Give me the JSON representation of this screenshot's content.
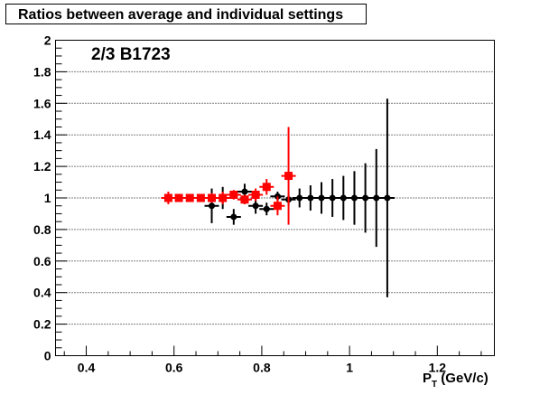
{
  "chart_data": {
    "type": "scatter",
    "title": "Ratios between average and individual settings",
    "annotation": "2/3 B1723",
    "xlabel": {
      "main": "P",
      "subscript": "T",
      "suffix": " (GeV/c)"
    },
    "ylabel": "",
    "xlim": [
      0.33,
      1.33
    ],
    "ylim": [
      0,
      2
    ],
    "x_tick_labels": [
      "0.4",
      "0.6",
      "0.8",
      "1",
      "1.2"
    ],
    "y_tick_labels": [
      "0",
      "0.2",
      "0.4",
      "0.6",
      "0.8",
      "1",
      "1.2",
      "1.4",
      "1.6",
      "1.8",
      "2"
    ],
    "grid": {
      "horizontal": true,
      "vertical": false
    },
    "legend": "none",
    "series": [
      {
        "color": "#ff0000",
        "marker": "square",
        "points": [
          {
            "x": 0.587,
            "y": 1.0,
            "err": 0.04
          },
          {
            "x": 0.611,
            "y": 1.0,
            "err": 0.02
          },
          {
            "x": 0.636,
            "y": 1.0,
            "err": 0.02
          },
          {
            "x": 0.661,
            "y": 1.0,
            "err": 0.015
          },
          {
            "x": 0.686,
            "y": 1.0,
            "err": 0.03
          },
          {
            "x": 0.711,
            "y": 1.0,
            "err": 0.04
          },
          {
            "x": 0.736,
            "y": 1.02,
            "err": 0.03
          },
          {
            "x": 0.761,
            "y": 0.99,
            "err": 0.03
          },
          {
            "x": 0.786,
            "y": 1.02,
            "err": 0.04
          },
          {
            "x": 0.811,
            "y": 1.07,
            "err": 0.05
          },
          {
            "x": 0.836,
            "y": 0.95,
            "err": 0.06
          },
          {
            "x": 0.861,
            "y": 1.14,
            "err": 0.31
          }
        ]
      },
      {
        "color": "#000000",
        "marker": "circle",
        "points": [
          {
            "x": 0.686,
            "y": 0.95,
            "err": 0.11
          },
          {
            "x": 0.711,
            "y": 1.0,
            "err": 0.07
          },
          {
            "x": 0.736,
            "y": 0.88,
            "err": 0.05
          },
          {
            "x": 0.761,
            "y": 1.04,
            "err": 0.05
          },
          {
            "x": 0.786,
            "y": 0.95,
            "err": 0.05
          },
          {
            "x": 0.811,
            "y": 0.93,
            "err": 0.04
          },
          {
            "x": 0.836,
            "y": 1.01,
            "err": 0.03
          },
          {
            "x": 0.861,
            "y": 0.99,
            "err": 0.04
          },
          {
            "x": 0.886,
            "y": 1.0,
            "err": 0.06
          },
          {
            "x": 0.911,
            "y": 1.0,
            "err": 0.08
          },
          {
            "x": 0.936,
            "y": 1.0,
            "err": 0.1
          },
          {
            "x": 0.961,
            "y": 1.0,
            "err": 0.12
          },
          {
            "x": 0.986,
            "y": 1.0,
            "err": 0.14
          },
          {
            "x": 1.011,
            "y": 1.0,
            "err": 0.17
          },
          {
            "x": 1.036,
            "y": 1.0,
            "err": 0.22
          },
          {
            "x": 1.061,
            "y": 1.0,
            "err": 0.31
          },
          {
            "x": 1.086,
            "y": 1.0,
            "err": 0.63
          }
        ]
      }
    ]
  }
}
